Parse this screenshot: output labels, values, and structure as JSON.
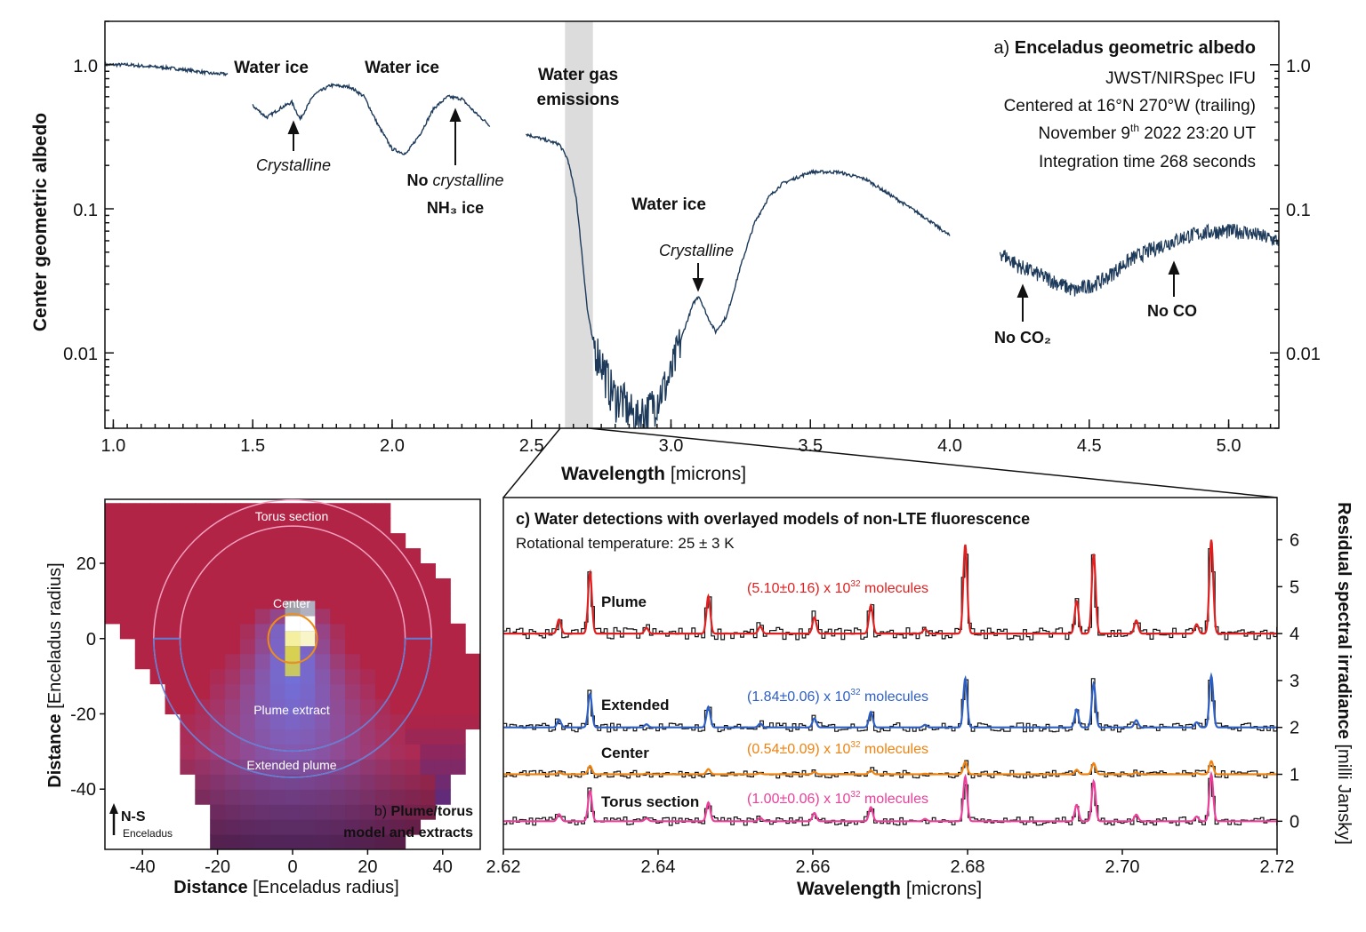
{
  "chart_data": [
    {
      "id": "a",
      "type": "line",
      "panel_label": "a)",
      "title": "Enceladus geometric albedo",
      "info_lines": [
        "JWST/NIRSpec IFU",
        "Centered at 16°N 270°W (trailing)",
        "November 9th 2022 23:20 UT",
        "Integration time 268 seconds"
      ],
      "date_parts": {
        "pre": "November 9",
        "sup": "th",
        "post": " 2022 23:20 UT"
      },
      "xlabel": "Wavelength",
      "xunit": "[microns]",
      "ylabel": "Center geometric albedo",
      "yscale": "log",
      "xlim": [
        0.97,
        5.18
      ],
      "ylim": [
        0.003,
        2.0
      ],
      "xticks": [
        1.0,
        1.5,
        2.0,
        2.5,
        3.0,
        3.5,
        4.0,
        4.5,
        5.0
      ],
      "xtick_labels": [
        "1.0",
        "1.5",
        "2.0",
        "2.5",
        "3.0",
        "3.5",
        "4.0",
        "4.5",
        "5.0"
      ],
      "yticks": [
        0.01,
        0.1,
        1.0
      ],
      "ytick_labels": [
        "0.01",
        "0.1",
        "1.0"
      ],
      "shaded_band": [
        2.62,
        2.72
      ],
      "line_color": "#1d3a5a",
      "band_color": "#dcdcdc",
      "segments": [
        {
          "x": [
            0.97,
            1.05,
            1.1,
            1.2,
            1.3,
            1.35,
            1.41
          ],
          "y": [
            1.0,
            1.0,
            0.98,
            0.95,
            0.9,
            0.87,
            0.86
          ]
        },
        {
          "x": [
            1.5,
            1.55,
            1.6,
            1.64,
            1.67,
            1.72,
            1.78,
            1.85,
            1.9,
            1.95,
            2.0,
            2.05,
            2.1,
            2.15,
            2.2,
            2.25,
            2.3,
            2.35
          ],
          "y": [
            0.52,
            0.43,
            0.5,
            0.55,
            0.42,
            0.62,
            0.72,
            0.7,
            0.6,
            0.38,
            0.26,
            0.24,
            0.33,
            0.5,
            0.6,
            0.58,
            0.46,
            0.38
          ]
        },
        {
          "x": [
            2.48,
            2.55,
            2.6,
            2.63,
            2.66,
            2.68,
            2.7,
            2.72,
            2.75,
            2.78,
            2.8,
            2.82,
            2.85,
            2.88,
            2.9,
            2.92,
            2.95,
            2.98,
            3.0,
            3.02,
            3.05,
            3.08,
            3.1,
            3.13,
            3.16,
            3.2,
            3.25,
            3.3,
            3.35,
            3.4,
            3.5,
            3.6,
            3.7,
            3.8,
            3.9,
            4.0
          ],
          "y": [
            0.33,
            0.3,
            0.28,
            0.22,
            0.12,
            0.05,
            0.02,
            0.012,
            0.009,
            0.006,
            0.005,
            0.005,
            0.004,
            0.0035,
            0.004,
            0.004,
            0.005,
            0.006,
            0.007,
            0.01,
            0.015,
            0.022,
            0.025,
            0.018,
            0.014,
            0.018,
            0.04,
            0.08,
            0.12,
            0.15,
            0.18,
            0.18,
            0.16,
            0.12,
            0.09,
            0.065
          ]
        }
      ],
      "noisy_segment": {
        "x_start": 4.18,
        "x_end": 5.18,
        "x": [
          4.18,
          4.25,
          4.35,
          4.45,
          4.55,
          4.65,
          4.75,
          4.85,
          4.95,
          5.05,
          5.18
        ],
        "y": [
          0.05,
          0.04,
          0.033,
          0.027,
          0.032,
          0.045,
          0.055,
          0.065,
          0.07,
          0.07,
          0.06
        ]
      },
      "annotations": [
        {
          "id": "wi1",
          "text": "Water ice",
          "x": 1.58,
          "y": 1.0
        },
        {
          "id": "wi2",
          "text": "Water ice",
          "x": 2.05,
          "y": 1.0
        },
        {
          "id": "wgas",
          "text": "Water gas emissions",
          "x": 2.67,
          "y": 0.85
        },
        {
          "id": "cr1",
          "text": "Crystalline",
          "x": 1.65,
          "y": 0.2
        },
        {
          "id": "nocr",
          "text": "No crystalline",
          "x": 2.22,
          "y": 0.2
        },
        {
          "id": "nh3",
          "text": "NH₃ ice",
          "x": 2.22,
          "y": 0.13
        },
        {
          "id": "wi3",
          "text": "Water ice",
          "x": 3.0,
          "y": 0.09
        },
        {
          "id": "cr2",
          "text": "Crystalline",
          "x": 3.1,
          "y": 0.05
        },
        {
          "id": "noco2",
          "text": "No CO₂",
          "x": 4.27,
          "y": 0.0085
        },
        {
          "id": "noco",
          "text": "No CO",
          "x": 4.8,
          "y": 0.013
        }
      ]
    },
    {
      "id": "b",
      "type": "heatmap",
      "title_line1": "b) Plume/torus",
      "title_line2": "model and extracts",
      "xlabel": "Distance",
      "xunit": "[Enceladus radius]",
      "ylabel": "Distance",
      "yunit": "[Enceladus radius]",
      "xlim": [
        -50,
        50
      ],
      "ylim": [
        -56,
        37
      ],
      "xticks": [
        -40,
        -20,
        0,
        20,
        40
      ],
      "xtick_labels": [
        "-40",
        "-20",
        "0",
        "20",
        "40"
      ],
      "yticks": [
        -40,
        -20,
        0,
        20
      ],
      "ytick_labels": [
        "-40",
        "-20",
        "0",
        "20"
      ],
      "region_labels": {
        "torus": "Torus section",
        "center": "Center",
        "plume": "Plume extract",
        "extended": "Extended plume"
      },
      "circle_radii": {
        "outer_torus": 37,
        "inner_torus": 30,
        "center": 6.5
      },
      "torus_color": "#b22446",
      "plume_color": "#7b7fe6",
      "north_label": "N-S",
      "north_sub": "Enceladus"
    },
    {
      "id": "c",
      "type": "line",
      "title": "c) Water detections with overlayed models of non-LTE fluorescence",
      "subtitle": "Rotational temperature: 25 ± 3 K",
      "xlabel": "Wavelength",
      "xunit": "[microns]",
      "ylabel": "Residual spectral irradiance",
      "yunit": "[milli Jansky]",
      "xlim": [
        2.62,
        2.72
      ],
      "ylim": [
        -0.6,
        6.9
      ],
      "xticks": [
        2.62,
        2.64,
        2.66,
        2.68,
        2.7,
        2.72
      ],
      "xtick_labels": [
        "2.62",
        "2.64",
        "2.66",
        "2.68",
        "2.70",
        "2.72"
      ],
      "yticks": [
        0,
        1,
        2,
        3,
        4,
        5,
        6
      ],
      "ytick_labels": [
        "0",
        "1",
        "2",
        "3",
        "4",
        "5",
        "6"
      ],
      "lines": [
        {
          "x": 2.6272,
          "amp": 0.3
        },
        {
          "x": 2.6312,
          "amp": 1.3
        },
        {
          "x": 2.6385,
          "amp": 0.12
        },
        {
          "x": 2.6465,
          "amp": 0.8
        },
        {
          "x": 2.6532,
          "amp": 0.15
        },
        {
          "x": 2.6602,
          "amp": 0.35
        },
        {
          "x": 2.6675,
          "amp": 0.6
        },
        {
          "x": 2.6745,
          "amp": 0.1
        },
        {
          "x": 2.6797,
          "amp": 1.9
        },
        {
          "x": 2.6941,
          "amp": 0.7
        },
        {
          "x": 2.6963,
          "amp": 1.7
        },
        {
          "x": 2.7018,
          "amp": 0.28
        },
        {
          "x": 2.7096,
          "amp": 0.2
        },
        {
          "x": 2.7115,
          "amp": 2.0
        }
      ],
      "series": [
        {
          "name": "Plume",
          "offset": 4,
          "scale": 1.0,
          "color": "#e02020",
          "label_pre": "(5.10±0.16) x 10",
          "label_exp": "32",
          "label_post": " molecules"
        },
        {
          "name": "Extended",
          "offset": 2,
          "scale": 0.55,
          "color": "#2e5fc4",
          "label_pre": "(1.84±0.06) x 10",
          "label_exp": "32",
          "label_post": " molecules"
        },
        {
          "name": "Center",
          "offset": 1,
          "scale": 0.14,
          "color": "#f0820f",
          "label_pre": "(0.54±0.09) x 10",
          "label_exp": "32",
          "label_post": " molecules"
        },
        {
          "name": "Torus section",
          "offset": 0,
          "scale": 0.5,
          "color": "#ec3f9a",
          "label_pre": "(1.00±0.06) x 10",
          "label_exp": "32",
          "label_post": " molecules"
        }
      ],
      "data_color": "#111111"
    }
  ]
}
